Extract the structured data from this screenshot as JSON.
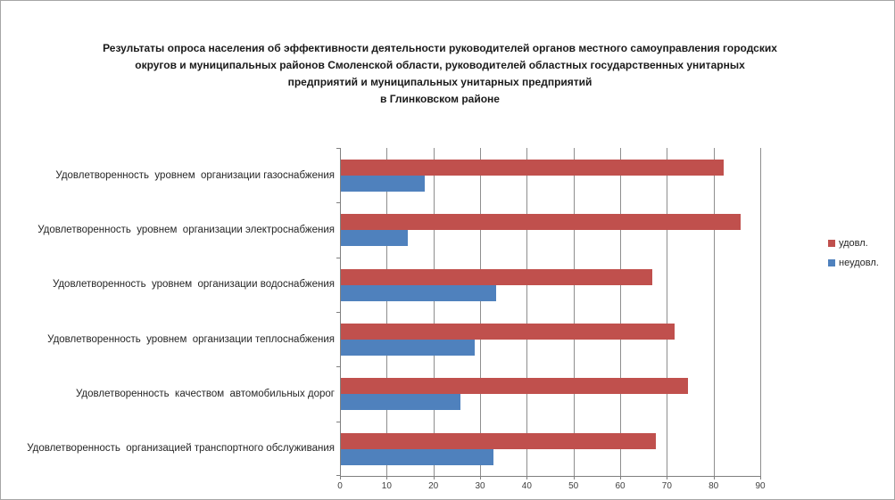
{
  "frame": {
    "background": "#FFFFFF",
    "border_color": "#A6A6A6"
  },
  "chart_data": {
    "type": "bar",
    "orientation": "horizontal",
    "title": "Результаты опроса населения об эффективности деятельности руководителей органов местного самоуправления городских округов и муниципальных районов Смоленской области, руководителей областных государственных унитарных предприятий и муниципальных унитарных предприятий в Глинковском районе",
    "title_lines": [
      "Результаты опроса населения об эффективности деятельности руководителей органов местного самоуправления городских",
      "округов и муниципальных районов Смоленской области, руководителей областных государственных унитарных",
      "предприятий и муниципальных унитарных предприятий",
      "в Глинковском районе"
    ],
    "categories": [
      "Удовлетворенность  уровнем  организации газоснабжения",
      "Удовлетворенность  уровнем  организации электроснабжения",
      "Удовлетворенность  уровнем  организации водоснабжения",
      "Удовлетворенность  уровнем  организации теплоснабжения",
      "Удовлетворенность  качеством  автомобильных дорог",
      "Удовлетворенность  организацией транспортного обслуживания"
    ],
    "series": [
      {
        "name": "удовл.",
        "color": "#C0504D",
        "values": [
          82,
          85.7,
          66.7,
          71.4,
          74.3,
          67.4
        ]
      },
      {
        "name": "неудовл.",
        "color": "#4F81BD",
        "values": [
          18,
          14.3,
          33.3,
          28.6,
          25.7,
          32.6
        ]
      }
    ],
    "xlim": [
      0,
      90
    ],
    "x_ticks": [
      0,
      10,
      20,
      30,
      40,
      50,
      60,
      70,
      80,
      90
    ],
    "grid": true,
    "legend_position": "right",
    "colors": {
      "gridline": "#8E8E8E",
      "axis": "#808080",
      "tick_label": "#404040",
      "category_label": "#262626",
      "title": "#1A1A1A"
    }
  }
}
